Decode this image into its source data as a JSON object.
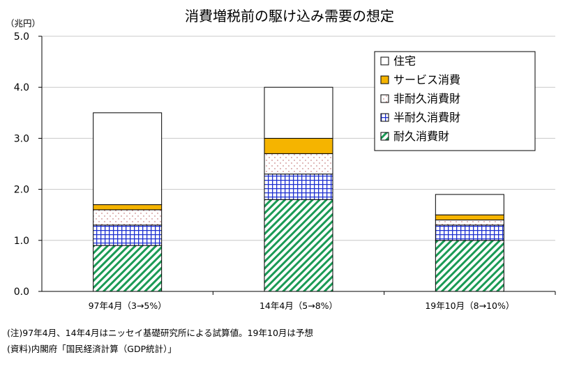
{
  "chart_data": {
    "type": "bar",
    "stacked": true,
    "title": "消費増税前の駆け込み需要の想定",
    "unit_label": "（兆円）",
    "categories": [
      "97年4月（3→5%）",
      "14年4月（5→8%）",
      "19年10月（8→10%）"
    ],
    "series": [
      {
        "name": "耐久消費財",
        "values": [
          0.9,
          1.8,
          1.0
        ],
        "color": "#1a9a55",
        "pattern": "diagonal-stripe"
      },
      {
        "name": "半耐久消費財",
        "values": [
          0.4,
          0.5,
          0.3
        ],
        "color": "#1c2fd0",
        "pattern": "grid"
      },
      {
        "name": "非耐久消費財",
        "values": [
          0.3,
          0.4,
          0.1
        ],
        "color": "#c05050",
        "pattern": "dots"
      },
      {
        "name": "サービス消費",
        "values": [
          0.1,
          0.3,
          0.1
        ],
        "color": "#f5b400",
        "pattern": "solid"
      },
      {
        "name": "住宅",
        "values": [
          1.8,
          1.0,
          0.4
        ],
        "color": "#ffffff",
        "pattern": "none"
      }
    ],
    "ylim": [
      0,
      5
    ],
    "yticks": [
      "0.0",
      "1.0",
      "2.0",
      "3.0",
      "4.0",
      "5.0"
    ],
    "grid": true,
    "legend_position": "top-right",
    "legend_order": [
      "住宅",
      "サービス消費",
      "非耐久消費財",
      "半耐久消費財",
      "耐久消費財"
    ]
  },
  "notes": {
    "note": "(注)97年4月、14年4月はニッセイ基礎研究所による試算値。19年10月は予想",
    "source": "(資料)内閣府「国民経済計算（GDP統計）」"
  }
}
